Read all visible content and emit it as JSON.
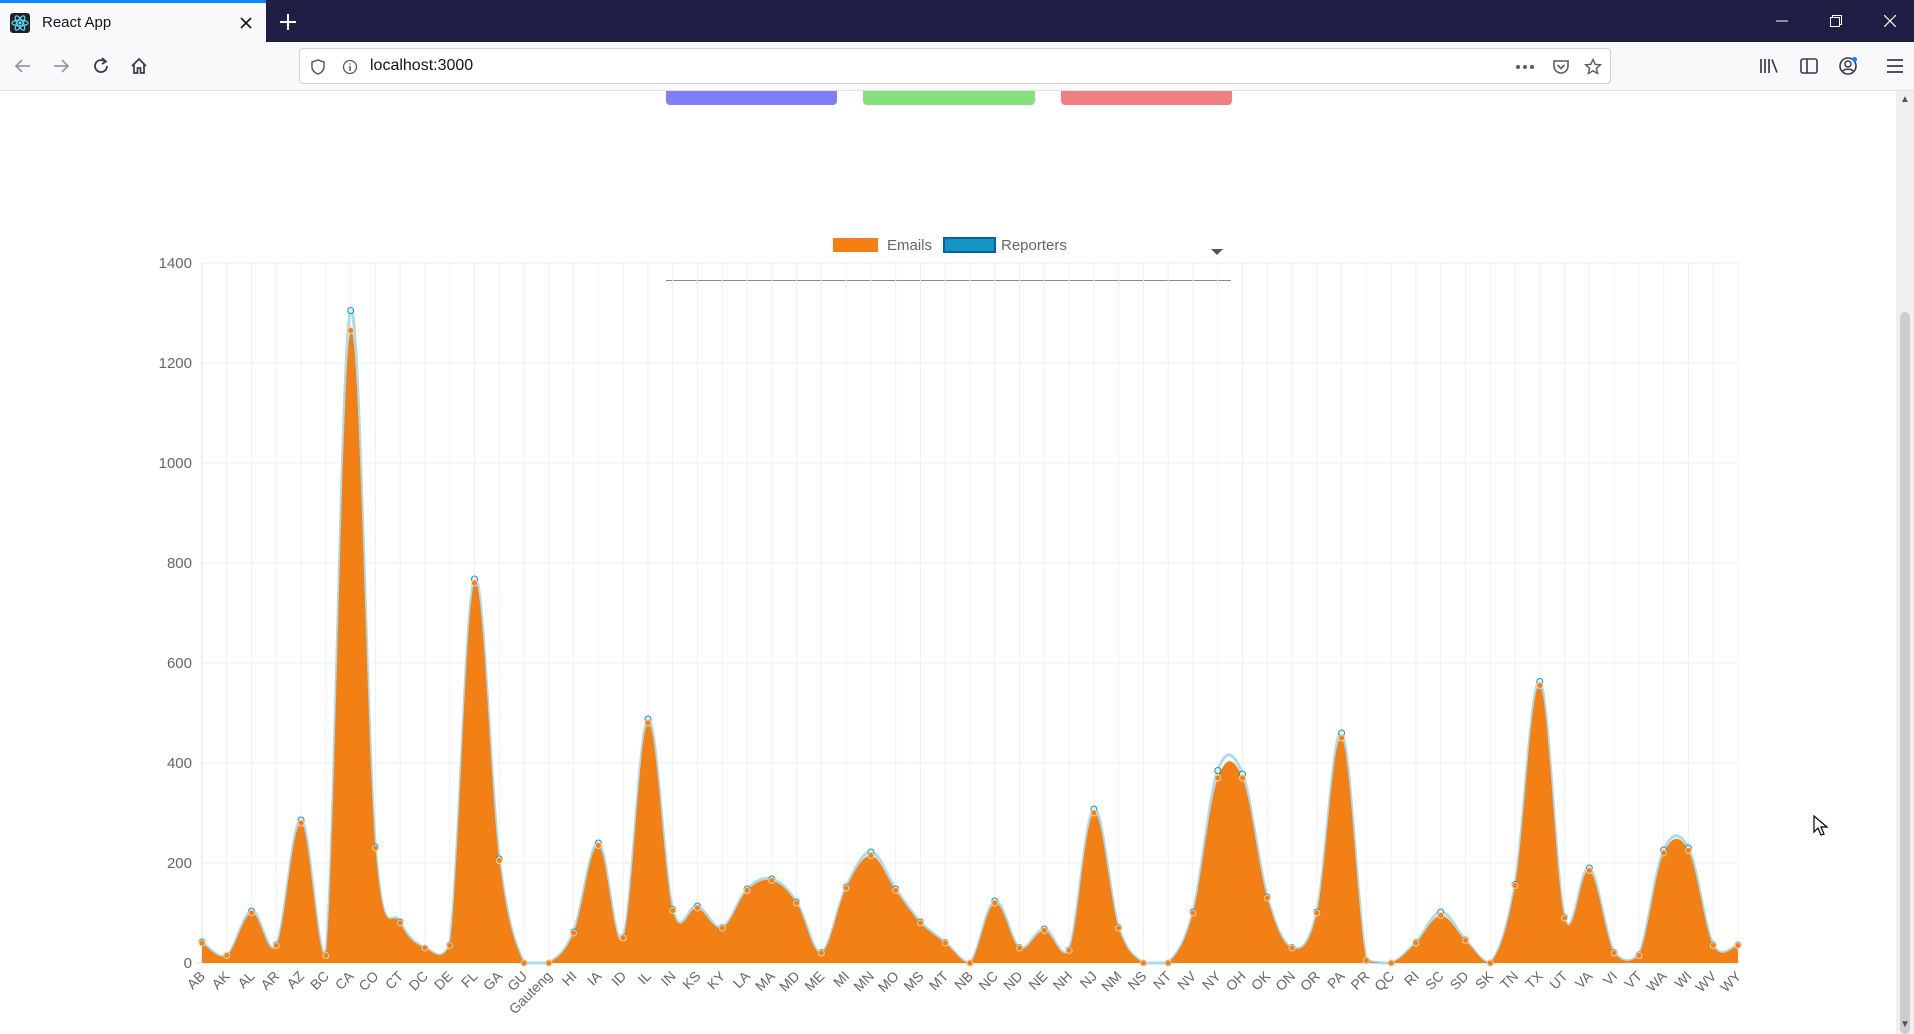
{
  "browser": {
    "tab_title": "React App",
    "url": "localhost:3000"
  },
  "icons": [
    "react-icon",
    "close-icon",
    "plus-icon",
    "minimize-icon",
    "restore-icon",
    "window-close-icon",
    "back-icon",
    "forward-icon",
    "reload-icon",
    "home-icon",
    "shield-icon",
    "info-icon",
    "more-icon",
    "pocket-icon",
    "star-icon",
    "library-icon",
    "sidebar-icon",
    "account-icon",
    "menu-icon"
  ],
  "colors": {
    "tabstrip": "#1f1f46",
    "button_blue": "#7f7ff7",
    "button_green": "#86e17d",
    "button_red": "#f08080",
    "emails": "#f28014",
    "reporters": "#1495c4"
  },
  "chart_data": {
    "type": "area",
    "legend": [
      "Emails",
      "Reporters"
    ],
    "legend_position": "top-center",
    "grid": true,
    "ylim": [
      0,
      1400
    ],
    "yticks": [
      0,
      200,
      400,
      600,
      800,
      1000,
      1200,
      1400
    ],
    "categories": [
      "AB",
      "AK",
      "AL",
      "AR",
      "AZ",
      "BC",
      "CA",
      "CO",
      "CT",
      "DC",
      "DE",
      "FL",
      "GA",
      "GU",
      "Gauteng",
      "HI",
      "IA",
      "ID",
      "IL",
      "IN",
      "KS",
      "KY",
      "LA",
      "MA",
      "MD",
      "ME",
      "MI",
      "MN",
      "MO",
      "MS",
      "MT",
      "NB",
      "NC",
      "ND",
      "NE",
      "NH",
      "NJ",
      "NM",
      "NS",
      "NT",
      "NV",
      "NY",
      "OH",
      "OK",
      "ON",
      "OR",
      "PA",
      "PR",
      "QC",
      "RI",
      "SC",
      "SD",
      "SK",
      "TN",
      "TX",
      "UT",
      "VA",
      "VI",
      "VT",
      "WA",
      "WI",
      "WV",
      "WY"
    ],
    "series": [
      {
        "name": "Emails",
        "fill": true,
        "values": [
          40,
          15,
          100,
          35,
          280,
          15,
          1265,
          230,
          80,
          30,
          35,
          760,
          205,
          0,
          0,
          60,
          235,
          50,
          480,
          105,
          110,
          70,
          145,
          165,
          120,
          20,
          150,
          215,
          145,
          80,
          40,
          0,
          120,
          30,
          65,
          25,
          300,
          70,
          0,
          0,
          100,
          370,
          370,
          130,
          30,
          100,
          450,
          5,
          0,
          40,
          95,
          45,
          0,
          155,
          555,
          90,
          185,
          20,
          15,
          220,
          225,
          35,
          35
        ]
      },
      {
        "name": "Reporters",
        "fill": false,
        "values": [
          42,
          15,
          104,
          36,
          286,
          16,
          1305,
          232,
          82,
          30,
          36,
          768,
          208,
          0,
          0,
          62,
          240,
          51,
          488,
          107,
          114,
          71,
          148,
          168,
          122,
          21,
          152,
          222,
          148,
          82,
          41,
          0,
          124,
          31,
          68,
          26,
          308,
          71,
          0,
          0,
          102,
          385,
          378,
          132,
          31,
          102,
          460,
          5,
          0,
          41,
          102,
          46,
          0,
          157,
          563,
          91,
          190,
          21,
          16,
          226,
          230,
          36,
          36
        ]
      }
    ]
  }
}
